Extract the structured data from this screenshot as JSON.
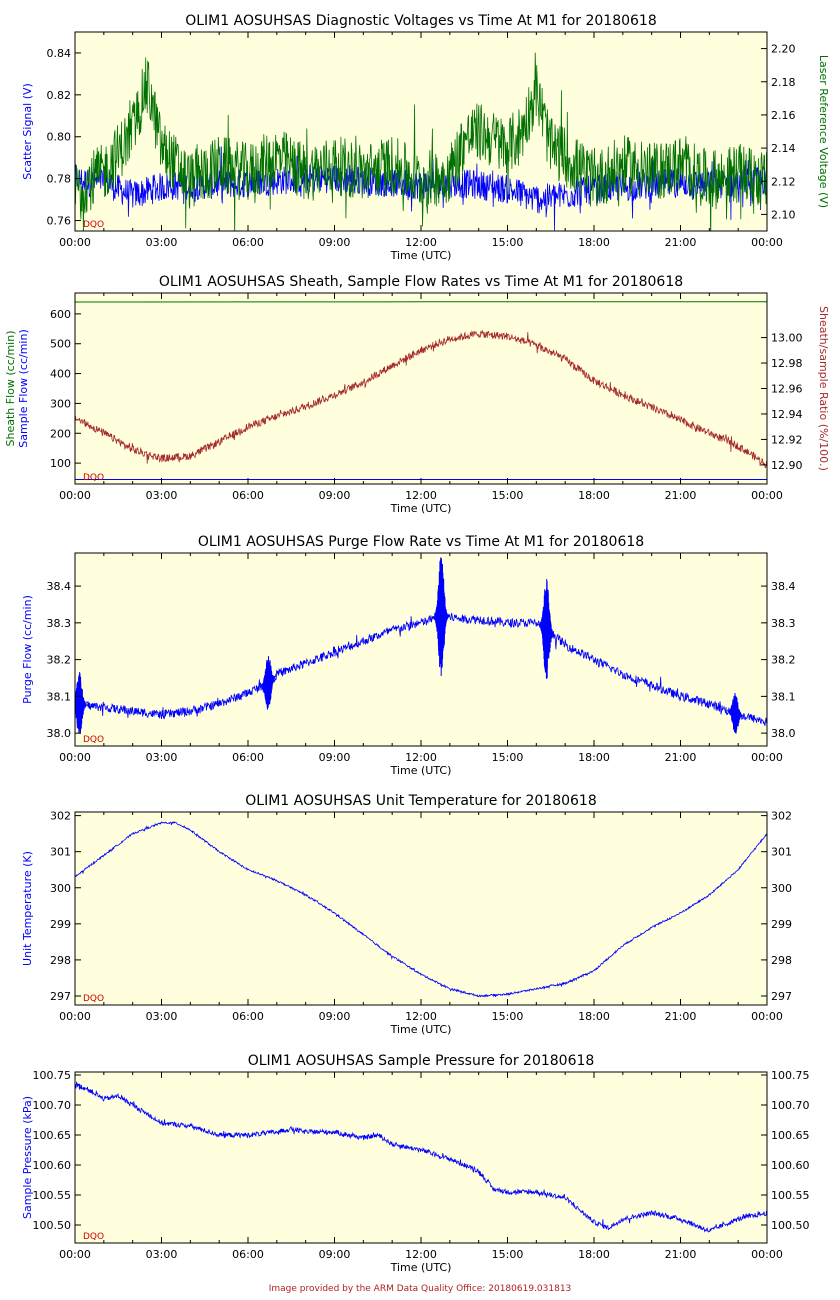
{
  "footer": "Image provided by the ARM Data Quality Office: 20180619.031813",
  "colors": {
    "plot_bg": "#ffffdd",
    "blue": "#0000ff",
    "green": "#007000",
    "brown": "#a52a2a",
    "dqo": "#cc0000",
    "axis": "#000000"
  },
  "chart_data": [
    {
      "type": "line",
      "title": "OLIM1 AOSUHSAS Diagnostic Voltages vs Time At M1 for 20180618",
      "xlabel": "Time (UTC)",
      "xticks": [
        "00:00",
        "03:00",
        "06:00",
        "09:00",
        "12:00",
        "15:00",
        "18:00",
        "21:00",
        "00:00"
      ],
      "xlim": [
        0,
        24
      ],
      "left_axis": {
        "label": "Scatter Signal (V)",
        "color": "#0000ff",
        "ylim": [
          0.755,
          0.85
        ],
        "ticks": [
          "0.76",
          "0.78",
          "0.80",
          "0.82",
          "0.84"
        ],
        "tick_values": [
          0.76,
          0.78,
          0.8,
          0.82,
          0.84
        ]
      },
      "right_axis": {
        "label": "Laser Reference Voltage (V)",
        "color": "#007000",
        "ylim": [
          2.09,
          2.21
        ],
        "ticks": [
          "2.10",
          "2.12",
          "2.14",
          "2.16",
          "2.18",
          "2.20"
        ],
        "tick_values": [
          2.1,
          2.12,
          2.14,
          2.16,
          2.18,
          2.2
        ]
      },
      "flag": "DQO",
      "series": [
        {
          "name": "Scatter Signal",
          "axis": "left",
          "color": "#0000ff",
          "noise": 0.007,
          "x": [
            0,
            0.5,
            1,
            1.5,
            2,
            3,
            4,
            5,
            6,
            7,
            8,
            9,
            10,
            11,
            12,
            13,
            14,
            15,
            16,
            17,
            18,
            19,
            20,
            21,
            22,
            23,
            24
          ],
          "y": [
            0.78,
            0.778,
            0.779,
            0.775,
            0.772,
            0.776,
            0.777,
            0.777,
            0.778,
            0.779,
            0.78,
            0.78,
            0.779,
            0.778,
            0.777,
            0.778,
            0.777,
            0.775,
            0.77,
            0.772,
            0.775,
            0.776,
            0.777,
            0.778,
            0.777,
            0.778,
            0.779
          ]
        },
        {
          "name": "Laser Reference Voltage",
          "axis": "right",
          "color": "#007000",
          "noise": 0.018,
          "x": [
            0,
            1,
            2,
            2.5,
            3,
            4,
            5,
            6,
            7,
            8,
            9,
            10,
            11,
            12,
            13,
            13.5,
            14,
            15,
            15.5,
            16,
            16.5,
            17,
            18,
            19,
            20,
            21,
            22,
            23,
            24
          ],
          "y": [
            2.115,
            2.125,
            2.15,
            2.18,
            2.14,
            2.12,
            2.13,
            2.125,
            2.135,
            2.125,
            2.13,
            2.125,
            2.13,
            2.12,
            2.125,
            2.145,
            2.15,
            2.14,
            2.15,
            2.175,
            2.14,
            2.135,
            2.12,
            2.13,
            2.125,
            2.13,
            2.12,
            2.125,
            2.12
          ]
        }
      ]
    },
    {
      "type": "line",
      "title": "OLIM1 AOSUHSAS Sheath, Sample Flow Rates vs Time At M1 for 20180618",
      "xlabel": "Time (UTC)",
      "xticks": [
        "00:00",
        "03:00",
        "06:00",
        "09:00",
        "12:00",
        "15:00",
        "18:00",
        "21:00",
        "00:00"
      ],
      "xlim": [
        0,
        24
      ],
      "left_axis": {
        "label_lines": [
          {
            "text": "Sheath Flow (cc/min)",
            "color": "#007000"
          },
          {
            "text": "Sample Flow (cc/min)",
            "color": "#0000ff"
          }
        ],
        "ylim": [
          30,
          670
        ],
        "ticks": [
          "100",
          "200",
          "300",
          "400",
          "500",
          "600"
        ],
        "tick_values": [
          100,
          200,
          300,
          400,
          500,
          600
        ]
      },
      "right_axis": {
        "label": "Sheath/sample Ratio (%/100.)",
        "color": "#a52a2a",
        "ylim": [
          12.885,
          13.035
        ],
        "ticks": [
          "12.90",
          "12.92",
          "12.94",
          "12.96",
          "12.98",
          "13.00"
        ],
        "tick_values": [
          12.9,
          12.92,
          12.94,
          12.96,
          12.98,
          13.0
        ]
      },
      "flag": "DQO",
      "series": [
        {
          "name": "Sheath Flow",
          "axis": "left",
          "color": "#007000",
          "noise": 0,
          "x": [
            0,
            24
          ],
          "y": [
            640,
            641
          ]
        },
        {
          "name": "Sample Flow",
          "axis": "left",
          "color": "#0000ff",
          "noise": 0,
          "x": [
            0,
            24
          ],
          "y": [
            45,
            45
          ]
        },
        {
          "name": "Sheath/sample Ratio",
          "axis": "right",
          "color": "#a52a2a",
          "noise": 0.003,
          "x": [
            0,
            1,
            2,
            3,
            4,
            5,
            6,
            7,
            8,
            9,
            10,
            11,
            12,
            13,
            14,
            15,
            16,
            17,
            18,
            19,
            20,
            21,
            22,
            23,
            24
          ],
          "y": [
            12.937,
            12.925,
            12.912,
            12.905,
            12.907,
            12.918,
            12.93,
            12.938,
            12.946,
            12.955,
            12.965,
            12.978,
            12.99,
            12.999,
            13.003,
            13.001,
            12.994,
            12.983,
            12.966,
            12.955,
            12.945,
            12.935,
            12.925,
            12.915,
            12.9
          ]
        }
      ]
    },
    {
      "type": "line",
      "title": "OLIM1 AOSUHSAS Purge Flow Rate vs Time At M1 for 20180618",
      "xlabel": "Time (UTC)",
      "xticks": [
        "00:00",
        "03:00",
        "06:00",
        "09:00",
        "12:00",
        "15:00",
        "18:00",
        "21:00",
        "00:00"
      ],
      "xlim": [
        0,
        24
      ],
      "left_axis": {
        "label": "Purge Flow (cc/min)",
        "color": "#0000ff",
        "ylim": [
          37.965,
          38.49
        ],
        "ticks": [
          "38.0",
          "38.1",
          "38.2",
          "38.3",
          "38.4"
        ],
        "tick_values": [
          38.0,
          38.1,
          38.2,
          38.3,
          38.4
        ]
      },
      "right_axis": {
        "label": "",
        "color": "#000000",
        "ylim": [
          37.965,
          38.49
        ],
        "ticks": [
          "38.0",
          "38.1",
          "38.2",
          "38.3",
          "38.4"
        ],
        "tick_values": [
          38.0,
          38.1,
          38.2,
          38.3,
          38.4
        ]
      },
      "flag": "DQO",
      "series": [
        {
          "name": "Purge Flow",
          "axis": "left",
          "color": "#0000ff",
          "noise": 0.012,
          "x": [
            0,
            1,
            2,
            3,
            4,
            5,
            6,
            6.8,
            7,
            8,
            9,
            10,
            11,
            12,
            12.7,
            13.5,
            14,
            15,
            16,
            16.4,
            17,
            18,
            19,
            20,
            21,
            22,
            23,
            24
          ],
          "y": [
            38.08,
            38.07,
            38.06,
            38.05,
            38.06,
            38.08,
            38.11,
            38.14,
            38.16,
            38.19,
            38.22,
            38.25,
            38.28,
            38.3,
            38.32,
            38.31,
            38.31,
            38.3,
            38.3,
            38.28,
            38.24,
            38.2,
            38.16,
            38.13,
            38.1,
            38.08,
            38.05,
            38.03
          ]
        },
        {
          "name": "Purge Flow Bursts",
          "axis": "left",
          "color": "#0000ff",
          "noise": 0,
          "bursts": [
            {
              "t": 0.15,
              "amp": 0.09
            },
            {
              "t": 6.7,
              "amp": 0.08
            },
            {
              "t": 12.7,
              "amp": 0.17
            },
            {
              "t": 16.35,
              "amp": 0.14
            },
            {
              "t": 22.9,
              "amp": 0.06
            }
          ],
          "x": [],
          "y": []
        }
      ]
    },
    {
      "type": "line",
      "title": "OLIM1 AOSUHSAS Unit Temperature for 20180618",
      "xlabel": "Time (UTC)",
      "xticks": [
        "00:00",
        "03:00",
        "06:00",
        "09:00",
        "12:00",
        "15:00",
        "18:00",
        "21:00",
        "00:00"
      ],
      "xlim": [
        0,
        24
      ],
      "left_axis": {
        "label": "Unit Temperature (K)",
        "color": "#0000ff",
        "ylim": [
          296.75,
          302.1
        ],
        "ticks": [
          "297",
          "298",
          "299",
          "300",
          "301",
          "302"
        ],
        "tick_values": [
          297,
          298,
          299,
          300,
          301,
          302
        ]
      },
      "right_axis": {
        "label": "",
        "color": "#000000",
        "ylim": [
          296.75,
          302.1
        ],
        "ticks": [
          "297",
          "298",
          "299",
          "300",
          "301",
          "302"
        ],
        "tick_values": [
          297,
          298,
          299,
          300,
          301,
          302
        ]
      },
      "flag": "DQO",
      "series": [
        {
          "name": "Unit Temperature",
          "axis": "left",
          "color": "#0000ff",
          "noise": 0.025,
          "x": [
            0,
            1,
            2,
            3,
            3.5,
            4,
            5,
            6,
            7,
            8,
            9,
            10,
            11,
            12,
            13,
            14,
            15,
            16,
            17,
            18,
            19,
            20,
            21,
            22,
            23,
            24
          ],
          "y": [
            300.3,
            300.9,
            301.5,
            301.8,
            301.8,
            301.6,
            301.0,
            300.5,
            300.2,
            299.8,
            299.3,
            298.7,
            298.1,
            297.6,
            297.2,
            297.0,
            297.05,
            297.2,
            297.35,
            297.7,
            298.4,
            298.9,
            299.3,
            299.8,
            300.5,
            301.5
          ]
        }
      ]
    },
    {
      "type": "line",
      "title": "OLIM1 AOSUHSAS Sample Pressure for 20180618",
      "xlabel": "Time (UTC)",
      "xticks": [
        "00:00",
        "03:00",
        "06:00",
        "09:00",
        "12:00",
        "15:00",
        "18:00",
        "21:00",
        "00:00"
      ],
      "xlim": [
        0,
        24
      ],
      "left_axis": {
        "label": "Sample Pressure (kPa)",
        "color": "#0000ff",
        "ylim": [
          100.47,
          100.755
        ],
        "ticks": [
          "100.50",
          "100.55",
          "100.60",
          "100.65",
          "100.70",
          "100.75"
        ],
        "tick_values": [
          100.5,
          100.55,
          100.6,
          100.65,
          100.7,
          100.75
        ]
      },
      "right_axis": {
        "label": "",
        "color": "#000000",
        "ylim": [
          100.47,
          100.755
        ],
        "ticks": [
          "100.50",
          "100.55",
          "100.60",
          "100.65",
          "100.70",
          "100.75"
        ],
        "tick_values": [
          100.5,
          100.55,
          100.6,
          100.65,
          100.7,
          100.75
        ]
      },
      "flag": "DQO",
      "series": [
        {
          "name": "Sample Pressure",
          "axis": "left",
          "color": "#0000ff",
          "noise": 0.004,
          "x": [
            0,
            0.5,
            1,
            1.5,
            2,
            3,
            4,
            5,
            6,
            7,
            7.5,
            8,
            9,
            10,
            10.5,
            11,
            12,
            13,
            14,
            14.5,
            15,
            16,
            17,
            18,
            18.5,
            19,
            20,
            21,
            22,
            23,
            24
          ],
          "y": [
            100.735,
            100.725,
            100.71,
            100.715,
            100.7,
            100.67,
            100.665,
            100.65,
            100.65,
            100.655,
            100.66,
            100.655,
            100.655,
            100.645,
            100.65,
            100.635,
            100.625,
            100.61,
            100.59,
            100.56,
            100.555,
            100.555,
            100.545,
            100.505,
            100.495,
            100.51,
            100.52,
            100.51,
            100.49,
            100.51,
            100.52
          ]
        }
      ]
    }
  ]
}
